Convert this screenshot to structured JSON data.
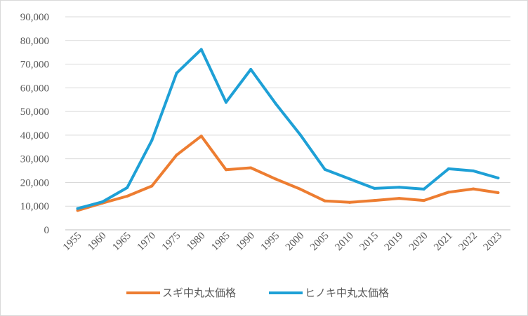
{
  "chart_data": {
    "type": "line",
    "title": "",
    "xlabel": "",
    "ylabel": "",
    "categories": [
      "1955",
      "1960",
      "1965",
      "1970",
      "1975",
      "1980",
      "1985",
      "1990",
      "1995",
      "2000",
      "2005",
      "2010",
      "2015",
      "2019",
      "2020",
      "2021",
      "2022",
      "2023"
    ],
    "y_ticks": [
      "0",
      "10,000",
      "20,000",
      "30,000",
      "40,000",
      "50,000",
      "60,000",
      "70,000",
      "80,000",
      "90,000"
    ],
    "ylim": [
      0,
      90000
    ],
    "grid": true,
    "legend_position": "bottom",
    "series": [
      {
        "name": "スギ中丸太価格",
        "color": "#ED7D31",
        "values": [
          8200,
          11300,
          14200,
          18500,
          31600,
          39600,
          25400,
          26200,
          21500,
          17200,
          12200,
          11600,
          12400,
          13300,
          12400,
          15900,
          17300,
          15700
        ]
      },
      {
        "name": "ヒノキ中丸太価格",
        "color": "#1EA0D6",
        "values": [
          9000,
          11800,
          17800,
          37800,
          66200,
          76200,
          53900,
          67800,
          53400,
          40200,
          25500,
          21500,
          17500,
          18000,
          17200,
          25800,
          24900,
          21900
        ]
      }
    ]
  }
}
